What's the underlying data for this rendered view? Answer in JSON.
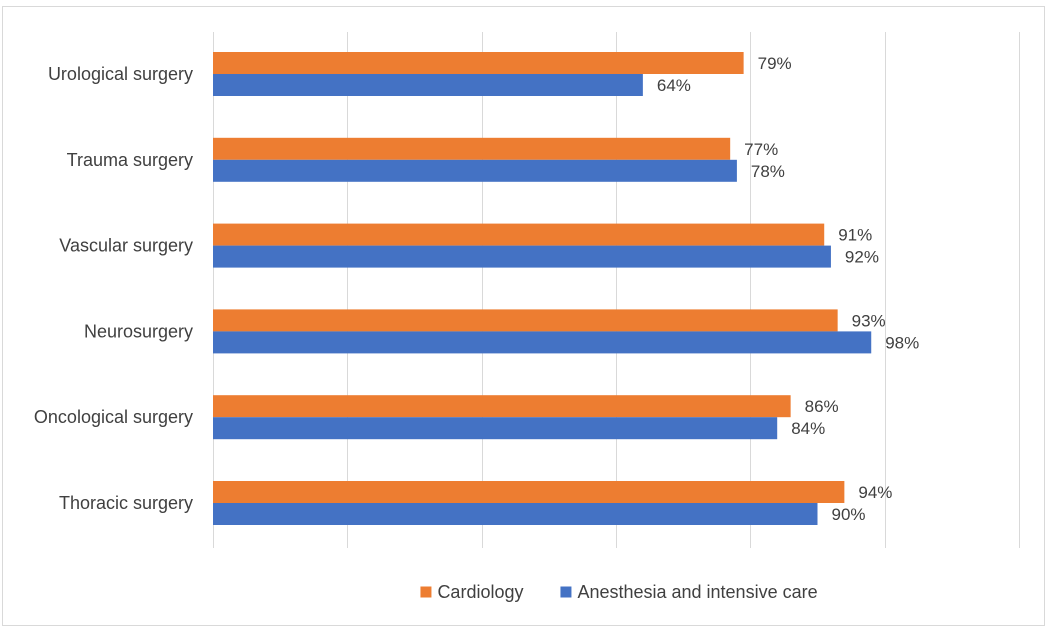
{
  "chart_data": {
    "type": "bar",
    "orientation": "horizontal",
    "categories": [
      "Urological surgery",
      "Trauma surgery",
      "Vascular surgery",
      "Neurosurgery",
      "Oncological  surgery",
      "Thoracic surgery"
    ],
    "series": [
      {
        "name": "Cardiology",
        "values": [
          79,
          77,
          91,
          93,
          86,
          94
        ],
        "color": "#ed7d31"
      },
      {
        "name": "Anesthesia and intensive care",
        "values": [
          64,
          78,
          92,
          98,
          84,
          90
        ],
        "color": "#4472c4"
      }
    ],
    "value_suffix": "%",
    "xlim": [
      0,
      120
    ],
    "grid": true,
    "legend_position": "bottom",
    "title": "",
    "xlabel": "",
    "ylabel": ""
  }
}
